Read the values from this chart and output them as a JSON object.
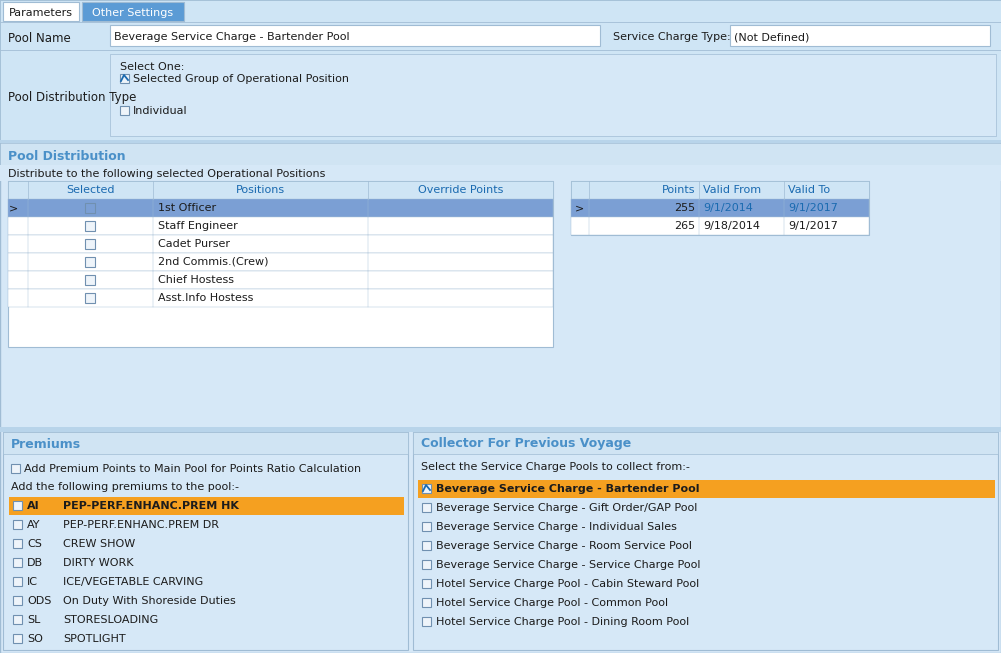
{
  "bg_color": "#d6e8f7",
  "tab_active": "Parameters",
  "tab_inactive": "Other Settings",
  "pool_name": "Beverage Service Charge - Bartender Pool",
  "service_charge_type": "(Not Defined)",
  "pool_distribution_type_label": "Pool Distribution Type",
  "select_one_label": "Select One:",
  "checkbox1_label": "Selected Group of Operational Position",
  "checkbox2_label": "Individual",
  "pool_dist_title": "Pool Distribution",
  "pool_dist_subtitle": "Distribute to the following selected Operational Positions",
  "table_headers": [
    "Selected",
    "Positions",
    "Override Points"
  ],
  "table_rows": [
    {
      "position": "1st Officer",
      "active": true
    },
    {
      "position": "Staff Engineer",
      "active": false
    },
    {
      "position": "Cadet Purser",
      "active": false
    },
    {
      "position": "2nd Commis.(Crew)",
      "active": false
    },
    {
      "position": "Chief Hostess",
      "active": false
    },
    {
      "position": "Asst.Info Hostess",
      "active": false
    }
  ],
  "right_table_headers": [
    "Points",
    "Valid From",
    "Valid To"
  ],
  "right_table_rows": [
    {
      "points": "255",
      "valid_from": "9/1/2014",
      "valid_to": "9/1/2017",
      "active": true
    },
    {
      "points": "265",
      "valid_from": "9/18/2014",
      "valid_to": "9/1/2017",
      "active": false
    }
  ],
  "premiums_title": "Premiums",
  "premiums_checkbox_label": "Add Premium Points to Main Pool for Points Ratio Calculation",
  "premiums_add_label": "Add the following premiums to the pool:-",
  "premiums_rows": [
    {
      "code": "AI",
      "desc": "PEP-PERF.ENHANC.PREM HK",
      "active": true
    },
    {
      "code": "AY",
      "desc": "PEP-PERF.ENHANC.PREM DR",
      "active": false
    },
    {
      "code": "CS",
      "desc": "CREW SHOW",
      "active": false
    },
    {
      "code": "DB",
      "desc": "DIRTY WORK",
      "active": false
    },
    {
      "code": "IC",
      "desc": "ICE/VEGETABLE CARVING",
      "active": false
    },
    {
      "code": "ODS",
      "desc": "On Duty With Shoreside Duties",
      "active": false
    },
    {
      "code": "SL",
      "desc": "STORESLOADING",
      "active": false
    },
    {
      "code": "SO",
      "desc": "SPOTLIGHT",
      "active": false
    }
  ],
  "collector_title": "Collector For Previous Voyage",
  "collector_subtitle": "Select the Service Charge Pools to collect from:-",
  "collector_rows": [
    {
      "label": "Beverage Service Charge - Bartender Pool",
      "checked": true,
      "active": true
    },
    {
      "label": "Beverage Service Charge - Gift Order/GAP Pool",
      "checked": false,
      "active": false
    },
    {
      "label": "Beverage Service Charge - Individual Sales",
      "checked": false,
      "active": false
    },
    {
      "label": "Beverage Service Charge - Room Service Pool",
      "checked": false,
      "active": false
    },
    {
      "label": "Beverage Service Charge - Service Charge Pool",
      "checked": false,
      "active": false
    },
    {
      "label": "Hotel Service Charge Pool - Cabin Steward Pool",
      "checked": false,
      "active": false
    },
    {
      "label": "Hotel Service Charge Pool - Common Pool",
      "checked": false,
      "active": false
    },
    {
      "label": "Hotel Service Charge Pool - Dining Room Pool",
      "checked": false,
      "active": false
    }
  ],
  "col_header_blue": "#4a90c8",
  "light_blue": "#cfe5f5",
  "medium_blue": "#b8d4ea",
  "row_selected": "#7b9fd4",
  "row_highlight_orange": "#f5a020",
  "white": "#ffffff",
  "text_dark": "#1c1c1c",
  "text_blue": "#1a6ab0",
  "border_color": "#a0bcd4",
  "section_header_bg": "#d0e4f3",
  "tab_blue": "#5b9bd5"
}
